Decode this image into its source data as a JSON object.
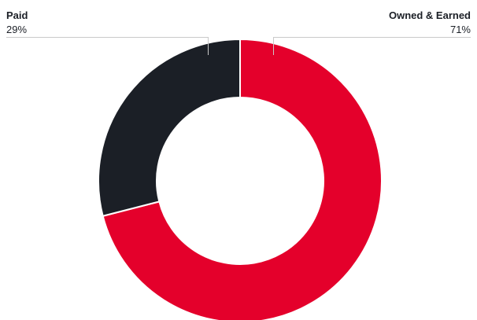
{
  "chart_data": {
    "type": "pie",
    "variant": "donut",
    "categories": [
      "Paid",
      "Owned & Earned"
    ],
    "values": [
      29,
      71
    ],
    "value_labels": [
      "29%",
      "71%"
    ],
    "colors": [
      "#1b1f26",
      "#e4002b"
    ],
    "legend": "none",
    "grid": false
  }
}
